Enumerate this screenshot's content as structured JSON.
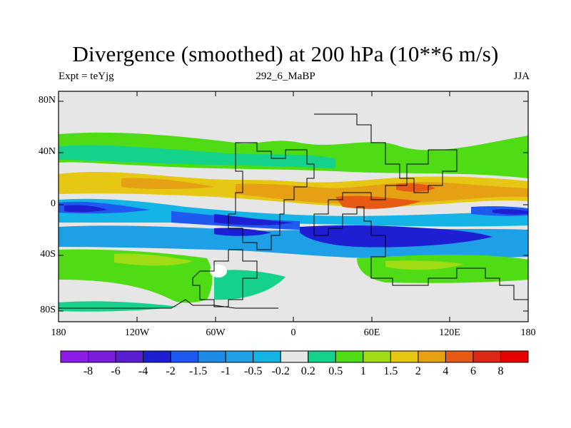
{
  "title": "Divergence (smoothed) at 200 hPa (10**6 m/s)",
  "subtitle_left": "Expt = teYjg",
  "subtitle_center": "292_6_MaBP",
  "subtitle_right": "JJA",
  "lat_ticks": [
    "80N",
    "40N",
    "0",
    "40S",
    "80S"
  ],
  "lon_ticks": [
    "180",
    "120W",
    "60W",
    "0",
    "60E",
    "120E",
    "180"
  ],
  "colorbar": {
    "labels": [
      "-8",
      "-6",
      "-4",
      "-2",
      "-1.5",
      "-1",
      "-0.5",
      "-0.2",
      "0.2",
      "0.5",
      "1",
      "1.5",
      "2",
      "4",
      "6",
      "8"
    ],
    "colors": [
      "#8c1ce6",
      "#7a1cdc",
      "#5a1ed2",
      "#1e1ed2",
      "#1e5af0",
      "#1e8ce6",
      "#1ea0e6",
      "#14b4e6",
      "#e6e6e6",
      "#14d28c",
      "#50dc14",
      "#a0dc14",
      "#e6c814",
      "#e6a014",
      "#e65a14",
      "#dc2814",
      "#e60000"
    ]
  },
  "map": {
    "background_color": "#e6e6e6",
    "bands": [
      {
        "lat": 45,
        "colors": [
          "#50dc14",
          "#14d28c"
        ]
      },
      {
        "lat": 20,
        "colors": [
          "#e6a014",
          "#e6c814",
          "#50dc14"
        ]
      },
      {
        "lat": 0,
        "colors": [
          "#1e1ed2",
          "#1e8ce6",
          "#14b4e6"
        ]
      },
      {
        "lat": -25,
        "colors": [
          "#1e1ed2",
          "#1e5af0",
          "#1ea0e6"
        ]
      },
      {
        "lat": -50,
        "colors": [
          "#50dc14",
          "#a0dc14",
          "#14d28c"
        ]
      }
    ]
  }
}
